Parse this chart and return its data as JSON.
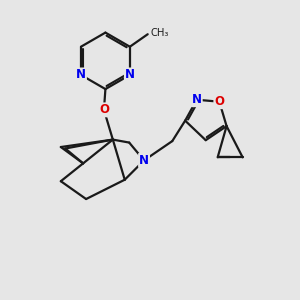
{
  "background_color": "#e6e6e6",
  "bond_color": "#1a1a1a",
  "nitrogen_color": "#0000ee",
  "oxygen_color": "#dd0000",
  "line_width": 1.6,
  "figsize": [
    3.0,
    3.0
  ],
  "dpi": 100,
  "xlim": [
    0,
    10
  ],
  "ylim": [
    0,
    10
  ]
}
